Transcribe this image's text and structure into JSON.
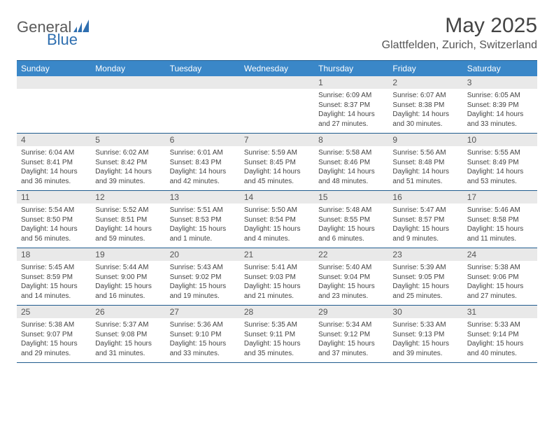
{
  "logo": {
    "general": "General",
    "blue": "Blue"
  },
  "title": "May 2025",
  "location": "Glattfelden, Zurich, Switzerland",
  "colors": {
    "header_bg": "#3a87c8",
    "header_text": "#ffffff",
    "border": "#1f5b8e",
    "daynum_bg": "#e9e9e9",
    "body_text": "#444444",
    "logo_gray": "#5a5a5a",
    "logo_blue": "#2f6fb0"
  },
  "day_names": [
    "Sunday",
    "Monday",
    "Tuesday",
    "Wednesday",
    "Thursday",
    "Friday",
    "Saturday"
  ],
  "weeks": [
    {
      "nums": [
        "",
        "",
        "",
        "",
        "1",
        "2",
        "3"
      ],
      "cells": [
        {
          "sunrise": "",
          "sunset": "",
          "daylight": ""
        },
        {
          "sunrise": "",
          "sunset": "",
          "daylight": ""
        },
        {
          "sunrise": "",
          "sunset": "",
          "daylight": ""
        },
        {
          "sunrise": "",
          "sunset": "",
          "daylight": ""
        },
        {
          "sunrise": "Sunrise: 6:09 AM",
          "sunset": "Sunset: 8:37 PM",
          "daylight": "Daylight: 14 hours and 27 minutes."
        },
        {
          "sunrise": "Sunrise: 6:07 AM",
          "sunset": "Sunset: 8:38 PM",
          "daylight": "Daylight: 14 hours and 30 minutes."
        },
        {
          "sunrise": "Sunrise: 6:05 AM",
          "sunset": "Sunset: 8:39 PM",
          "daylight": "Daylight: 14 hours and 33 minutes."
        }
      ]
    },
    {
      "nums": [
        "4",
        "5",
        "6",
        "7",
        "8",
        "9",
        "10"
      ],
      "cells": [
        {
          "sunrise": "Sunrise: 6:04 AM",
          "sunset": "Sunset: 8:41 PM",
          "daylight": "Daylight: 14 hours and 36 minutes."
        },
        {
          "sunrise": "Sunrise: 6:02 AM",
          "sunset": "Sunset: 8:42 PM",
          "daylight": "Daylight: 14 hours and 39 minutes."
        },
        {
          "sunrise": "Sunrise: 6:01 AM",
          "sunset": "Sunset: 8:43 PM",
          "daylight": "Daylight: 14 hours and 42 minutes."
        },
        {
          "sunrise": "Sunrise: 5:59 AM",
          "sunset": "Sunset: 8:45 PM",
          "daylight": "Daylight: 14 hours and 45 minutes."
        },
        {
          "sunrise": "Sunrise: 5:58 AM",
          "sunset": "Sunset: 8:46 PM",
          "daylight": "Daylight: 14 hours and 48 minutes."
        },
        {
          "sunrise": "Sunrise: 5:56 AM",
          "sunset": "Sunset: 8:48 PM",
          "daylight": "Daylight: 14 hours and 51 minutes."
        },
        {
          "sunrise": "Sunrise: 5:55 AM",
          "sunset": "Sunset: 8:49 PM",
          "daylight": "Daylight: 14 hours and 53 minutes."
        }
      ]
    },
    {
      "nums": [
        "11",
        "12",
        "13",
        "14",
        "15",
        "16",
        "17"
      ],
      "cells": [
        {
          "sunrise": "Sunrise: 5:54 AM",
          "sunset": "Sunset: 8:50 PM",
          "daylight": "Daylight: 14 hours and 56 minutes."
        },
        {
          "sunrise": "Sunrise: 5:52 AM",
          "sunset": "Sunset: 8:51 PM",
          "daylight": "Daylight: 14 hours and 59 minutes."
        },
        {
          "sunrise": "Sunrise: 5:51 AM",
          "sunset": "Sunset: 8:53 PM",
          "daylight": "Daylight: 15 hours and 1 minute."
        },
        {
          "sunrise": "Sunrise: 5:50 AM",
          "sunset": "Sunset: 8:54 PM",
          "daylight": "Daylight: 15 hours and 4 minutes."
        },
        {
          "sunrise": "Sunrise: 5:48 AM",
          "sunset": "Sunset: 8:55 PM",
          "daylight": "Daylight: 15 hours and 6 minutes."
        },
        {
          "sunrise": "Sunrise: 5:47 AM",
          "sunset": "Sunset: 8:57 PM",
          "daylight": "Daylight: 15 hours and 9 minutes."
        },
        {
          "sunrise": "Sunrise: 5:46 AM",
          "sunset": "Sunset: 8:58 PM",
          "daylight": "Daylight: 15 hours and 11 minutes."
        }
      ]
    },
    {
      "nums": [
        "18",
        "19",
        "20",
        "21",
        "22",
        "23",
        "24"
      ],
      "cells": [
        {
          "sunrise": "Sunrise: 5:45 AM",
          "sunset": "Sunset: 8:59 PM",
          "daylight": "Daylight: 15 hours and 14 minutes."
        },
        {
          "sunrise": "Sunrise: 5:44 AM",
          "sunset": "Sunset: 9:00 PM",
          "daylight": "Daylight: 15 hours and 16 minutes."
        },
        {
          "sunrise": "Sunrise: 5:43 AM",
          "sunset": "Sunset: 9:02 PM",
          "daylight": "Daylight: 15 hours and 19 minutes."
        },
        {
          "sunrise": "Sunrise: 5:41 AM",
          "sunset": "Sunset: 9:03 PM",
          "daylight": "Daylight: 15 hours and 21 minutes."
        },
        {
          "sunrise": "Sunrise: 5:40 AM",
          "sunset": "Sunset: 9:04 PM",
          "daylight": "Daylight: 15 hours and 23 minutes."
        },
        {
          "sunrise": "Sunrise: 5:39 AM",
          "sunset": "Sunset: 9:05 PM",
          "daylight": "Daylight: 15 hours and 25 minutes."
        },
        {
          "sunrise": "Sunrise: 5:38 AM",
          "sunset": "Sunset: 9:06 PM",
          "daylight": "Daylight: 15 hours and 27 minutes."
        }
      ]
    },
    {
      "nums": [
        "25",
        "26",
        "27",
        "28",
        "29",
        "30",
        "31"
      ],
      "cells": [
        {
          "sunrise": "Sunrise: 5:38 AM",
          "sunset": "Sunset: 9:07 PM",
          "daylight": "Daylight: 15 hours and 29 minutes."
        },
        {
          "sunrise": "Sunrise: 5:37 AM",
          "sunset": "Sunset: 9:08 PM",
          "daylight": "Daylight: 15 hours and 31 minutes."
        },
        {
          "sunrise": "Sunrise: 5:36 AM",
          "sunset": "Sunset: 9:10 PM",
          "daylight": "Daylight: 15 hours and 33 minutes."
        },
        {
          "sunrise": "Sunrise: 5:35 AM",
          "sunset": "Sunset: 9:11 PM",
          "daylight": "Daylight: 15 hours and 35 minutes."
        },
        {
          "sunrise": "Sunrise: 5:34 AM",
          "sunset": "Sunset: 9:12 PM",
          "daylight": "Daylight: 15 hours and 37 minutes."
        },
        {
          "sunrise": "Sunrise: 5:33 AM",
          "sunset": "Sunset: 9:13 PM",
          "daylight": "Daylight: 15 hours and 39 minutes."
        },
        {
          "sunrise": "Sunrise: 5:33 AM",
          "sunset": "Sunset: 9:14 PM",
          "daylight": "Daylight: 15 hours and 40 minutes."
        }
      ]
    }
  ]
}
